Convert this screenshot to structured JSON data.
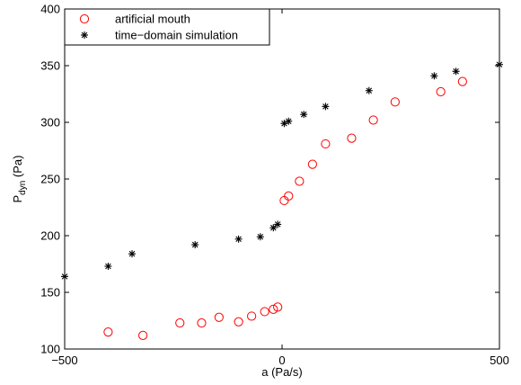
{
  "chart_data": {
    "type": "scatter",
    "xlabel": "a (Pa/s)",
    "ylabel_main": "P",
    "ylabel_sub": "dyn",
    "ylabel_unit": " (Pa)",
    "xlim": [
      -500,
      500
    ],
    "ylim": [
      100,
      400
    ],
    "xticks": [
      -500,
      0,
      500
    ],
    "yticks": [
      100,
      150,
      200,
      250,
      300,
      350,
      400
    ],
    "grid": false,
    "legend_position": "top-left",
    "series": [
      {
        "name": "artificial mouth",
        "marker": "circle",
        "color": "#ff0000",
        "points": [
          [
            -400,
            115
          ],
          [
            -320,
            112
          ],
          [
            -235,
            123
          ],
          [
            -185,
            123
          ],
          [
            -145,
            128
          ],
          [
            -100,
            124
          ],
          [
            -70,
            129
          ],
          [
            -40,
            133
          ],
          [
            -20,
            135
          ],
          [
            -10,
            137
          ],
          [
            5,
            231
          ],
          [
            15,
            235
          ],
          [
            40,
            248
          ],
          [
            70,
            263
          ],
          [
            100,
            281
          ],
          [
            160,
            286
          ],
          [
            210,
            302
          ],
          [
            260,
            318
          ],
          [
            365,
            327
          ],
          [
            415,
            336
          ]
        ]
      },
      {
        "name": "time−domain simulation",
        "marker": "asterisk",
        "color": "#000000",
        "points": [
          [
            -500,
            164
          ],
          [
            -400,
            173
          ],
          [
            -345,
            184
          ],
          [
            -200,
            192
          ],
          [
            -100,
            197
          ],
          [
            -50,
            199
          ],
          [
            -20,
            207
          ],
          [
            -10,
            210
          ],
          [
            5,
            299
          ],
          [
            15,
            301
          ],
          [
            50,
            307
          ],
          [
            100,
            314
          ],
          [
            200,
            328
          ],
          [
            350,
            341
          ],
          [
            400,
            345
          ],
          [
            500,
            351
          ]
        ]
      }
    ]
  }
}
